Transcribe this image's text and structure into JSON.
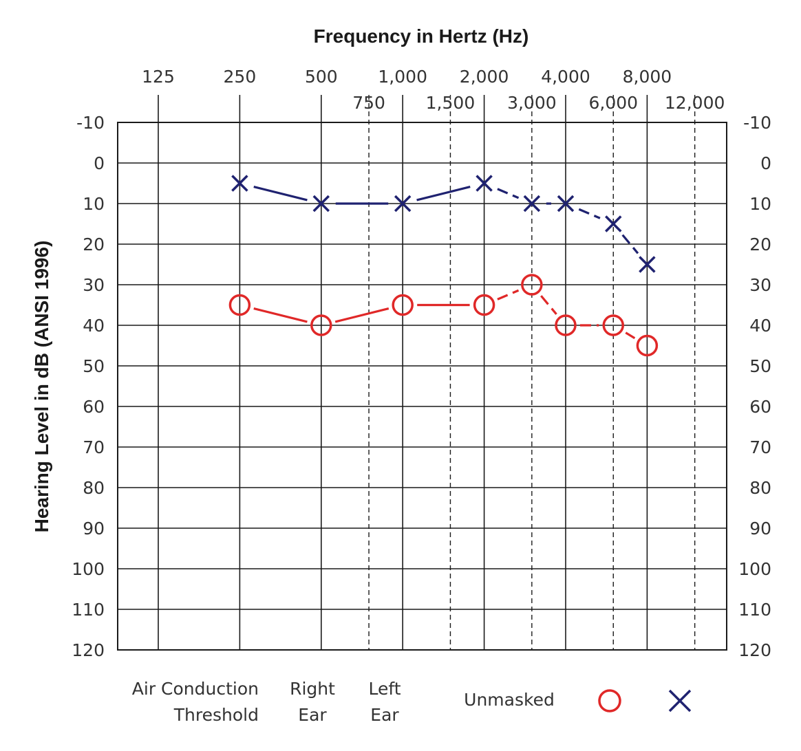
{
  "chart_data": {
    "type": "line",
    "title": "Frequency in Hertz (Hz)",
    "xlabel": "Frequency in Hertz (Hz)",
    "ylabel": "Hearing Level in dB (ANSI 1996)",
    "x_scale": "log2",
    "y_inverted": true,
    "ylim": [
      -10,
      120
    ],
    "grid": true,
    "x_ticks_major": [
      {
        "value": 125,
        "label": "125"
      },
      {
        "value": 250,
        "label": "250"
      },
      {
        "value": 500,
        "label": "500"
      },
      {
        "value": 1000,
        "label": "1,000"
      },
      {
        "value": 2000,
        "label": "2,000"
      },
      {
        "value": 4000,
        "label": "4,000"
      },
      {
        "value": 8000,
        "label": "8,000"
      }
    ],
    "x_ticks_minor": [
      {
        "value": 750,
        "label": "750"
      },
      {
        "value": 1500,
        "label": "1,500"
      },
      {
        "value": 3000,
        "label": "3,000"
      },
      {
        "value": 6000,
        "label": "6,000"
      },
      {
        "value": 12000,
        "label": "12,000"
      }
    ],
    "y_ticks": [
      {
        "value": -10,
        "label": "-10"
      },
      {
        "value": 0,
        "label": "0"
      },
      {
        "value": 10,
        "label": "10"
      },
      {
        "value": 20,
        "label": "20"
      },
      {
        "value": 30,
        "label": "30"
      },
      {
        "value": 40,
        "label": "40"
      },
      {
        "value": 50,
        "label": "50"
      },
      {
        "value": 60,
        "label": "60"
      },
      {
        "value": 70,
        "label": "70"
      },
      {
        "value": 80,
        "label": "80"
      },
      {
        "value": 90,
        "label": "90"
      },
      {
        "value": 100,
        "label": "100"
      },
      {
        "value": 110,
        "label": "110"
      },
      {
        "value": 120,
        "label": "120"
      }
    ],
    "series": [
      {
        "name": "Right Ear",
        "marker": "circle",
        "color": "#e02828",
        "x": [
          250,
          500,
          1000,
          2000,
          3000,
          4000,
          6000,
          8000
        ],
        "y": [
          35,
          40,
          35,
          35,
          30,
          40,
          40,
          45
        ]
      },
      {
        "name": "Left Ear",
        "marker": "x",
        "color": "#1f2270",
        "x": [
          250,
          500,
          1000,
          2000,
          3000,
          4000,
          6000,
          8000
        ],
        "y": [
          5,
          10,
          10,
          5,
          10,
          10,
          15,
          25
        ]
      }
    ],
    "legend": {
      "position": "bottom",
      "row_label_line1": "Air Conduction",
      "row_label_line2": "Threshold",
      "col1_line1": "Right",
      "col1_line2": "Ear",
      "col2_line1": "Left",
      "col2_line2": "Ear",
      "condition": "Unmasked"
    }
  }
}
